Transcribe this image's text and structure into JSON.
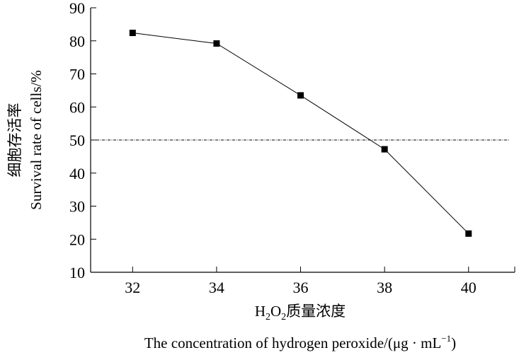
{
  "chart_data": {
    "type": "line",
    "title": "",
    "xlabel_cn_prefix": "H",
    "xlabel_cn_sub1": "2",
    "xlabel_cn_mid": "O",
    "xlabel_cn_sub2": "2",
    "xlabel_cn_suffix": "质量浓度",
    "xlabel_en": "The concentration of hydrogen peroxide/(μg · mL",
    "xlabel_en_sup": "−1",
    "xlabel_en_end": ")",
    "ylabel_cn": "细胞存活率",
    "ylabel_en": "Survival rate of cells/%",
    "x": [
      32,
      34,
      36,
      38,
      40
    ],
    "series": [
      {
        "name": "Survival rate",
        "values": [
          82.4,
          79.2,
          63.5,
          47.2,
          21.7
        ]
      }
    ],
    "reference_line": {
      "y": 50,
      "style": "dash-dot"
    },
    "xlim": [
      31,
      41.1
    ],
    "ylim": [
      10,
      90
    ],
    "xticks": [
      32,
      34,
      36,
      38,
      40
    ],
    "yticks": [
      10,
      20,
      30,
      40,
      50,
      60,
      70,
      80,
      90
    ],
    "grid": false,
    "legend": "none",
    "color": "#000000"
  }
}
